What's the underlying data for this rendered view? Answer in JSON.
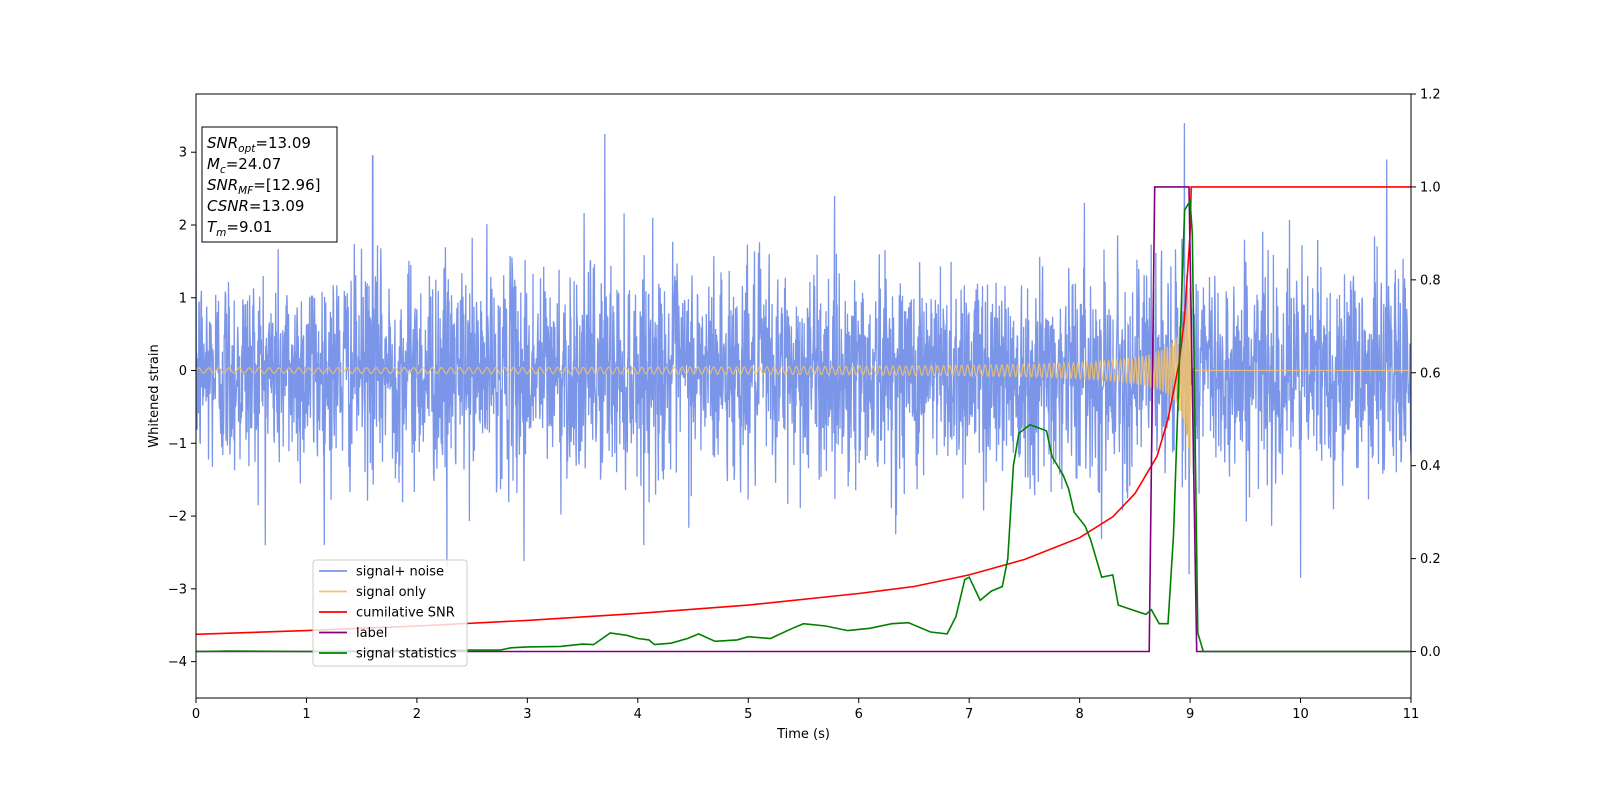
{
  "chart_data": {
    "type": "line",
    "xlabel": "Time (s)",
    "ylabel": "Whitened strain",
    "xlim": [
      0,
      11
    ],
    "ylim_left": [
      -4.5,
      3.8
    ],
    "ylim_right": [
      -0.1,
      1.2
    ],
    "xticks": [
      0,
      1,
      2,
      3,
      4,
      5,
      6,
      7,
      8,
      9,
      10,
      11
    ],
    "yticks_left": [
      -4,
      -3,
      -2,
      -1,
      0,
      1,
      2,
      3
    ],
    "yticks_left_labels": [
      "−4",
      "−3",
      "−2",
      "−1",
      "0",
      "1",
      "2",
      "3"
    ],
    "yticks_right": [
      0.0,
      0.2,
      0.4,
      0.6,
      0.8,
      1.0,
      1.2
    ],
    "yticks_right_labels": [
      "0.0",
      "0.2",
      "0.4",
      "0.6",
      "0.8",
      "1.0",
      "1.2"
    ],
    "info_box": [
      {
        "sym": "SNR",
        "sub": "opt",
        "rest": "=13.09"
      },
      {
        "sym": "M",
        "sub": "c",
        "rest": "=24.07"
      },
      {
        "sym": "SNR",
        "sub": "MF",
        "rest": "=[12.96]"
      },
      {
        "sym": "CSNR",
        "sub": "",
        "rest": "=13.09"
      },
      {
        "sym": "T",
        "sub": "m",
        "rest": "=9.01"
      }
    ],
    "legend_position": "lower-left",
    "series": [
      {
        "name": "signal+ noise",
        "axis": "left",
        "color": "#7b96e8",
        "kind": "noise",
        "amplitude_typical": 1.5,
        "peaks": [
          {
            "x": 1.6,
            "y": 2.95
          },
          {
            "x": 3.7,
            "y": 3.25
          },
          {
            "x": 8.95,
            "y": 3.4
          },
          {
            "x": 10.78,
            "y": 2.9
          },
          {
            "x": 2.27,
            "y": -2.7
          },
          {
            "x": 2.97,
            "y": -2.62
          },
          {
            "x": 10.0,
            "y": -2.85
          },
          {
            "x": 8.99,
            "y": -2.8
          }
        ]
      },
      {
        "name": "signal only",
        "axis": "left",
        "color": "#f5c26b",
        "kind": "chirp",
        "t_merge": 9.01,
        "amplitude_at_merge": 1.5
      },
      {
        "name": "cumilative SNR",
        "axis": "right",
        "color": "#ff0000",
        "points": [
          [
            0,
            0.037
          ],
          [
            1,
            0.045
          ],
          [
            2,
            0.055
          ],
          [
            3,
            0.067
          ],
          [
            4,
            0.082
          ],
          [
            5,
            0.1
          ],
          [
            6,
            0.125
          ],
          [
            6.5,
            0.14
          ],
          [
            7,
            0.165
          ],
          [
            7.5,
            0.198
          ],
          [
            8,
            0.245
          ],
          [
            8.3,
            0.29
          ],
          [
            8.5,
            0.34
          ],
          [
            8.7,
            0.42
          ],
          [
            8.8,
            0.5
          ],
          [
            8.9,
            0.62
          ],
          [
            8.95,
            0.72
          ],
          [
            9.0,
            0.9
          ],
          [
            9.01,
            1.0
          ],
          [
            11,
            1.0
          ]
        ]
      },
      {
        "name": "label",
        "axis": "right",
        "color": "#800080",
        "points": [
          [
            0,
            0.0
          ],
          [
            8.63,
            0.0
          ],
          [
            8.68,
            1.0
          ],
          [
            8.99,
            1.0
          ],
          [
            9.06,
            0.0
          ],
          [
            11,
            0.0
          ]
        ]
      },
      {
        "name": "signal statistics",
        "axis": "right",
        "color": "#008000",
        "points": [
          [
            0,
            0.0
          ],
          [
            0.3,
            0.001
          ],
          [
            1.0,
            0.0
          ],
          [
            1.5,
            0.001
          ],
          [
            2.0,
            0.002
          ],
          [
            2.5,
            0.003
          ],
          [
            2.75,
            0.003
          ],
          [
            2.85,
            0.008
          ],
          [
            3.0,
            0.01
          ],
          [
            3.3,
            0.011
          ],
          [
            3.5,
            0.016
          ],
          [
            3.6,
            0.015
          ],
          [
            3.75,
            0.04
          ],
          [
            3.9,
            0.035
          ],
          [
            4.0,
            0.028
          ],
          [
            4.1,
            0.025
          ],
          [
            4.15,
            0.015
          ],
          [
            4.3,
            0.018
          ],
          [
            4.45,
            0.028
          ],
          [
            4.55,
            0.038
          ],
          [
            4.7,
            0.022
          ],
          [
            4.9,
            0.025
          ],
          [
            5.0,
            0.032
          ],
          [
            5.2,
            0.028
          ],
          [
            5.4,
            0.05
          ],
          [
            5.5,
            0.06
          ],
          [
            5.7,
            0.055
          ],
          [
            5.9,
            0.045
          ],
          [
            6.1,
            0.05
          ],
          [
            6.3,
            0.06
          ],
          [
            6.45,
            0.062
          ],
          [
            6.65,
            0.042
          ],
          [
            6.8,
            0.038
          ],
          [
            6.88,
            0.075
          ],
          [
            6.96,
            0.155
          ],
          [
            7.0,
            0.16
          ],
          [
            7.1,
            0.11
          ],
          [
            7.2,
            0.13
          ],
          [
            7.3,
            0.14
          ],
          [
            7.35,
            0.2
          ],
          [
            7.4,
            0.4
          ],
          [
            7.45,
            0.47
          ],
          [
            7.55,
            0.488
          ],
          [
            7.7,
            0.475
          ],
          [
            7.75,
            0.42
          ],
          [
            7.85,
            0.38
          ],
          [
            7.9,
            0.35
          ],
          [
            7.95,
            0.3
          ],
          [
            8.05,
            0.27
          ],
          [
            8.1,
            0.24
          ],
          [
            8.2,
            0.16
          ],
          [
            8.3,
            0.165
          ],
          [
            8.35,
            0.1
          ],
          [
            8.5,
            0.088
          ],
          [
            8.6,
            0.08
          ],
          [
            8.65,
            0.09
          ],
          [
            8.72,
            0.06
          ],
          [
            8.8,
            0.06
          ],
          [
            8.85,
            0.25
          ],
          [
            8.9,
            0.6
          ],
          [
            8.95,
            0.95
          ],
          [
            9.0,
            0.97
          ],
          [
            9.02,
            0.9
          ],
          [
            9.07,
            0.04
          ],
          [
            9.12,
            0.0
          ],
          [
            11,
            0.0
          ]
        ]
      }
    ]
  }
}
